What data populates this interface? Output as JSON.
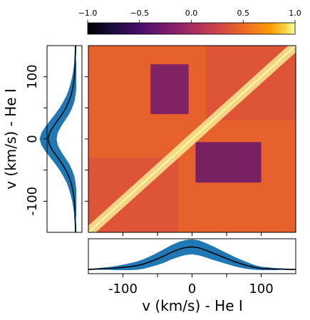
{
  "chart_data": [
    {
      "type": "heatmap",
      "name": "velocity correlation matrix",
      "colormap": "inferno",
      "xlim": [
        -150,
        150
      ],
      "ylim": [
        -150,
        150
      ],
      "zlim": [
        -1,
        1
      ],
      "grid": false,
      "colorbar": {
        "position": "top",
        "ticks": [
          -1.0,
          -0.5,
          0.0,
          0.5,
          1.0
        ],
        "tick_labels": [
          "−1.0",
          "−0.5",
          "0.0",
          "0.5",
          "1.0"
        ]
      },
      "x_tick_values": [
        -100,
        -50,
        0,
        50,
        100
      ],
      "y_tick_values": [
        -100,
        -50,
        0,
        50,
        100
      ],
      "blocks": [
        {
          "x": [
            -150,
            150
          ],
          "y": [
            -150,
            150
          ],
          "value": 0.45
        },
        {
          "x": [
            -60,
            -5
          ],
          "y": [
            40,
            120
          ],
          "value": -0.3
        },
        {
          "x": [
            5,
            100
          ],
          "y": [
            -70,
            -5
          ],
          "value": -0.35
        },
        {
          "x": [
            -150,
            -20
          ],
          "y": [
            -150,
            -30
          ],
          "value": 0.35
        },
        {
          "x": [
            20,
            150
          ],
          "y": [
            30,
            150
          ],
          "value": 0.35
        }
      ],
      "diagonal_value": 1.0
    },
    {
      "type": "line",
      "name": "left profile (rotated)",
      "x_values": [
        -150,
        -140,
        -130,
        -120,
        -110,
        -100,
        -90,
        -80,
        -70,
        -60,
        -50,
        -40,
        -30,
        -20,
        -10,
        0,
        10,
        20,
        30,
        40,
        50,
        60,
        70,
        80,
        90,
        100,
        110,
        120,
        130,
        140,
        150
      ],
      "mean": [
        0.02,
        0.02,
        0.03,
        0.03,
        0.04,
        0.05,
        0.07,
        0.1,
        0.14,
        0.2,
        0.28,
        0.38,
        0.5,
        0.62,
        0.72,
        0.76,
        0.72,
        0.62,
        0.5,
        0.38,
        0.28,
        0.2,
        0.14,
        0.1,
        0.07,
        0.05,
        0.04,
        0.03,
        0.03,
        0.02,
        0.02
      ],
      "spread": [
        0.02,
        0.02,
        0.02,
        0.03,
        0.04,
        0.06,
        0.08,
        0.1,
        0.12,
        0.15,
        0.17,
        0.19,
        0.2,
        0.21,
        0.22,
        0.23,
        0.22,
        0.21,
        0.2,
        0.19,
        0.17,
        0.15,
        0.12,
        0.1,
        0.08,
        0.06,
        0.04,
        0.03,
        0.02,
        0.02,
        0.02
      ],
      "y_tick_labels": [
        "100",
        "0",
        "-100"
      ],
      "ylabel": "v (km/s) - He I"
    },
    {
      "type": "line",
      "name": "bottom profile",
      "x_values": [
        -150,
        -140,
        -130,
        -120,
        -110,
        -100,
        -90,
        -80,
        -70,
        -60,
        -50,
        -40,
        -30,
        -20,
        -10,
        0,
        10,
        20,
        30,
        40,
        50,
        60,
        70,
        80,
        90,
        100,
        110,
        120,
        130,
        140,
        150
      ],
      "mean": [
        0.02,
        0.03,
        0.04,
        0.05,
        0.06,
        0.08,
        0.1,
        0.13,
        0.18,
        0.25,
        0.33,
        0.42,
        0.52,
        0.6,
        0.66,
        0.68,
        0.65,
        0.58,
        0.5,
        0.42,
        0.34,
        0.26,
        0.19,
        0.13,
        0.08,
        0.05,
        0.04,
        0.03,
        0.03,
        0.02,
        0.02
      ],
      "spread": [
        0.02,
        0.02,
        0.03,
        0.04,
        0.06,
        0.08,
        0.1,
        0.12,
        0.14,
        0.16,
        0.18,
        0.2,
        0.21,
        0.22,
        0.22,
        0.22,
        0.22,
        0.21,
        0.2,
        0.18,
        0.16,
        0.14,
        0.12,
        0.1,
        0.07,
        0.05,
        0.04,
        0.03,
        0.02,
        0.02,
        0.02
      ],
      "x_tick_labels": [
        "-100",
        "0",
        "100"
      ],
      "xlabel": "v (km/s) - He I"
    }
  ],
  "colors": {
    "band": "#1f77b4",
    "mean_line": "#000000"
  }
}
